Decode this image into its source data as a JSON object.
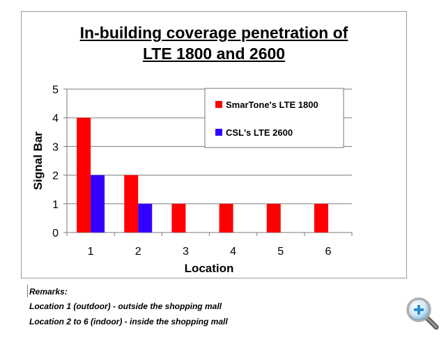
{
  "chart_data": {
    "type": "bar",
    "title_line1": "In-building coverage penetration of",
    "title_line2": "LTE 1800 and 2600",
    "xlabel": "Location",
    "ylabel": "Signal Bar",
    "categories": [
      "1",
      "2",
      "3",
      "4",
      "5",
      "6"
    ],
    "yticks": [
      "0",
      "1",
      "2",
      "3",
      "4",
      "5"
    ],
    "ylim": [
      0,
      5
    ],
    "grid": true,
    "legend_position": "top-right",
    "series": [
      {
        "name": "SmarTone's LTE 1800",
        "color": "#ff0000",
        "values": [
          4,
          2,
          1,
          1,
          1,
          1
        ]
      },
      {
        "name": "CSL's LTE 2600",
        "color": "#3300ff",
        "values": [
          2,
          1,
          null,
          null,
          null,
          null
        ]
      }
    ]
  },
  "remarks": {
    "title": "Remarks:",
    "line1": "Location 1 (outdoor) - outside the shopping mall",
    "line2": "Location 2 to 6 (indoor) - inside the shopping mall"
  },
  "zoom_icon": "magnifier-plus-icon"
}
